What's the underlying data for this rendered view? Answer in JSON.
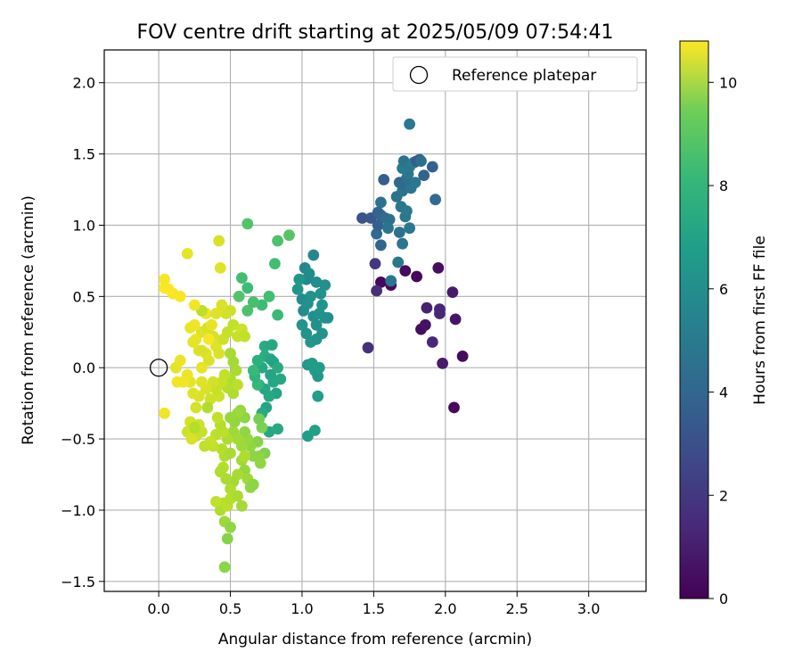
{
  "chart_data": {
    "type": "scatter",
    "title": "FOV centre drift starting at 2025/05/09 07:54:41",
    "xlabel": "Angular distance from reference (arcmin)",
    "ylabel": "Rotation from reference (arcmin)",
    "xlim": [
      -0.38,
      3.4
    ],
    "ylim": [
      -1.57,
      2.23
    ],
    "xticks": [
      0.0,
      0.5,
      1.0,
      1.5,
      2.0,
      2.5,
      3.0
    ],
    "xtick_labels": [
      "0.0",
      "0.5",
      "1.0",
      "1.5",
      "2.0",
      "2.5",
      "3.0"
    ],
    "yticks": [
      -1.5,
      -1.0,
      -0.5,
      0.0,
      0.5,
      1.0,
      1.5,
      2.0
    ],
    "ytick_labels": [
      "−1.5",
      "−1.0",
      "−0.5",
      "0.0",
      "0.5",
      "1.0",
      "1.5",
      "2.0"
    ],
    "grid": true,
    "legend": {
      "position": "top-right",
      "entries": [
        "Reference platepar"
      ]
    },
    "reference_point": {
      "x": 0.0,
      "y": 0.0,
      "marker": "open-circle"
    },
    "colorbar": {
      "label": "Hours from first FF file",
      "colormap": "viridis",
      "min": 0,
      "max": 10.8,
      "ticks": [
        0,
        2,
        4,
        6,
        8,
        10
      ],
      "tick_labels": [
        "0",
        "2",
        "4",
        "6",
        "8",
        "10"
      ]
    },
    "points": [
      {
        "x": 1.55,
        "y": 0.6,
        "c": 0.2
      },
      {
        "x": 1.62,
        "y": 0.58,
        "c": 0.3
      },
      {
        "x": 1.72,
        "y": 0.68,
        "c": 0.3
      },
      {
        "x": 1.8,
        "y": 0.64,
        "c": 0.2
      },
      {
        "x": 1.83,
        "y": 0.27,
        "c": 0.4
      },
      {
        "x": 1.86,
        "y": 0.3,
        "c": 0.5
      },
      {
        "x": 1.95,
        "y": 0.7,
        "c": 0.4
      },
      {
        "x": 2.12,
        "y": 0.08,
        "c": 0.3
      },
      {
        "x": 2.06,
        "y": -0.28,
        "c": 0.2
      },
      {
        "x": 2.07,
        "y": 0.34,
        "c": 0.6
      },
      {
        "x": 2.05,
        "y": 0.53,
        "c": 0.8
      },
      {
        "x": 1.98,
        "y": 0.03,
        "c": 0.8
      },
      {
        "x": 1.96,
        "y": 0.41,
        "c": 1.1
      },
      {
        "x": 1.96,
        "y": 0.38,
        "c": 1.2
      },
      {
        "x": 1.87,
        "y": 0.42,
        "c": 1.0
      },
      {
        "x": 1.91,
        "y": 0.18,
        "c": 1.2
      },
      {
        "x": 1.46,
        "y": 0.14,
        "c": 1.5
      },
      {
        "x": 1.52,
        "y": 0.54,
        "c": 1.5
      },
      {
        "x": 1.51,
        "y": 0.73,
        "c": 1.7
      },
      {
        "x": 1.55,
        "y": 0.86,
        "c": 3.5
      },
      {
        "x": 1.52,
        "y": 0.94,
        "c": 3.7
      },
      {
        "x": 1.53,
        "y": 1.0,
        "c": 3.3
      },
      {
        "x": 1.55,
        "y": 1.07,
        "c": 3.6
      },
      {
        "x": 1.42,
        "y": 1.05,
        "c": 2.8
      },
      {
        "x": 1.48,
        "y": 1.05,
        "c": 3.0
      },
      {
        "x": 1.53,
        "y": 1.09,
        "c": 3.5
      },
      {
        "x": 1.58,
        "y": 1.05,
        "c": 3.8
      },
      {
        "x": 1.61,
        "y": 1.04,
        "c": 3.9
      },
      {
        "x": 1.6,
        "y": 0.98,
        "c": 4.1
      },
      {
        "x": 1.55,
        "y": 1.16,
        "c": 4.0
      },
      {
        "x": 1.57,
        "y": 1.32,
        "c": 3.2
      },
      {
        "x": 1.62,
        "y": 0.61,
        "c": 4.2
      },
      {
        "x": 1.67,
        "y": 0.74,
        "c": 4.3
      },
      {
        "x": 1.68,
        "y": 0.95,
        "c": 4.0
      },
      {
        "x": 1.7,
        "y": 0.87,
        "c": 4.2
      },
      {
        "x": 1.72,
        "y": 1.06,
        "c": 4.3
      },
      {
        "x": 1.69,
        "y": 1.13,
        "c": 4.2
      },
      {
        "x": 1.73,
        "y": 1.1,
        "c": 4.4
      },
      {
        "x": 1.75,
        "y": 0.98,
        "c": 4.3
      },
      {
        "x": 1.66,
        "y": 1.2,
        "c": 4.0
      },
      {
        "x": 1.7,
        "y": 1.24,
        "c": 4.1
      },
      {
        "x": 1.72,
        "y": 1.28,
        "c": 3.8
      },
      {
        "x": 1.68,
        "y": 1.3,
        "c": 3.6
      },
      {
        "x": 1.73,
        "y": 1.33,
        "c": 3.9
      },
      {
        "x": 1.74,
        "y": 1.36,
        "c": 4.2
      },
      {
        "x": 1.7,
        "y": 1.4,
        "c": 4.4
      },
      {
        "x": 1.71,
        "y": 1.45,
        "c": 4.0
      },
      {
        "x": 1.75,
        "y": 1.41,
        "c": 4.3
      },
      {
        "x": 1.78,
        "y": 1.44,
        "c": 4.5
      },
      {
        "x": 1.76,
        "y": 1.26,
        "c": 4.2
      },
      {
        "x": 1.79,
        "y": 1.3,
        "c": 4.3
      },
      {
        "x": 1.8,
        "y": 1.45,
        "c": 3.1
      },
      {
        "x": 1.82,
        "y": 1.46,
        "c": 3.3
      },
      {
        "x": 1.85,
        "y": 1.35,
        "c": 3.4
      },
      {
        "x": 1.91,
        "y": 1.41,
        "c": 3.3
      },
      {
        "x": 1.93,
        "y": 1.18,
        "c": 3.7
      },
      {
        "x": 1.75,
        "y": 1.71,
        "c": 4.4
      },
      {
        "x": 1.83,
        "y": 1.45,
        "c": 3.9
      },
      {
        "x": 1.02,
        "y": 0.7,
        "c": 5.0
      },
      {
        "x": 1.03,
        "y": 0.62,
        "c": 5.1
      },
      {
        "x": 1.05,
        "y": 0.66,
        "c": 5.2
      },
      {
        "x": 1.08,
        "y": 0.79,
        "c": 5.0
      },
      {
        "x": 1.1,
        "y": 0.6,
        "c": 5.3
      },
      {
        "x": 1.13,
        "y": 0.52,
        "c": 5.5
      },
      {
        "x": 1.16,
        "y": 0.58,
        "c": 5.4
      },
      {
        "x": 1.0,
        "y": 0.48,
        "c": 5.2
      },
      {
        "x": 1.01,
        "y": 0.4,
        "c": 5.3
      },
      {
        "x": 1.04,
        "y": 0.45,
        "c": 5.4
      },
      {
        "x": 1.06,
        "y": 0.5,
        "c": 5.5
      },
      {
        "x": 1.08,
        "y": 0.36,
        "c": 5.3
      },
      {
        "x": 1.1,
        "y": 0.3,
        "c": 5.4
      },
      {
        "x": 1.12,
        "y": 0.38,
        "c": 5.5
      },
      {
        "x": 1.14,
        "y": 0.44,
        "c": 5.6
      },
      {
        "x": 1.16,
        "y": 0.35,
        "c": 5.5
      },
      {
        "x": 1.18,
        "y": 0.35,
        "c": 5.4
      },
      {
        "x": 1.0,
        "y": 0.3,
        "c": 5.6
      },
      {
        "x": 1.03,
        "y": 0.24,
        "c": 5.5
      },
      {
        "x": 1.06,
        "y": 0.18,
        "c": 5.7
      },
      {
        "x": 1.1,
        "y": 0.2,
        "c": 5.6
      },
      {
        "x": 1.14,
        "y": 0.24,
        "c": 5.5
      },
      {
        "x": 1.04,
        "y": 0.02,
        "c": 5.8
      },
      {
        "x": 1.07,
        "y": 0.03,
        "c": 5.9
      },
      {
        "x": 1.09,
        "y": -0.02,
        "c": 5.9
      },
      {
        "x": 1.11,
        "y": -0.06,
        "c": 5.8
      },
      {
        "x": 1.12,
        "y": 0.0,
        "c": 5.9
      },
      {
        "x": 1.11,
        "y": -0.2,
        "c": 6.0
      },
      {
        "x": 1.04,
        "y": -0.48,
        "c": 6.0
      },
      {
        "x": 1.09,
        "y": -0.44,
        "c": 6.1
      },
      {
        "x": 0.97,
        "y": 0.55,
        "c": 5.6
      },
      {
        "x": 0.98,
        "y": 0.62,
        "c": 5.7
      },
      {
        "x": 0.78,
        "y": -0.05,
        "c": 6.3
      },
      {
        "x": 0.8,
        "y": -0.1,
        "c": 6.4
      },
      {
        "x": 0.82,
        "y": -0.18,
        "c": 6.2
      },
      {
        "x": 0.77,
        "y": -0.2,
        "c": 6.5
      },
      {
        "x": 0.75,
        "y": -0.28,
        "c": 6.3
      },
      {
        "x": 0.72,
        "y": -0.32,
        "c": 6.6
      },
      {
        "x": 0.74,
        "y": -0.15,
        "c": 6.4
      },
      {
        "x": 0.7,
        "y": -0.12,
        "c": 6.6
      },
      {
        "x": 0.72,
        "y": 0.0,
        "c": 6.5
      },
      {
        "x": 0.74,
        "y": 0.08,
        "c": 6.7
      },
      {
        "x": 0.69,
        "y": 0.05,
        "c": 6.8
      },
      {
        "x": 0.78,
        "y": 0.06,
        "c": 6.4
      },
      {
        "x": 0.8,
        "y": 0.04,
        "c": 6.3
      },
      {
        "x": 0.83,
        "y": 0.0,
        "c": 6.6
      },
      {
        "x": 0.85,
        "y": -0.08,
        "c": 6.5
      },
      {
        "x": 0.77,
        "y": -0.45,
        "c": 6.4
      },
      {
        "x": 0.83,
        "y": -0.43,
        "c": 6.5
      },
      {
        "x": 0.74,
        "y": 0.15,
        "c": 6.6
      },
      {
        "x": 0.79,
        "y": 0.16,
        "c": 6.5
      },
      {
        "x": 0.83,
        "y": 0.37,
        "c": 7.3
      },
      {
        "x": 0.77,
        "y": 0.5,
        "c": 7.5
      },
      {
        "x": 0.72,
        "y": 0.44,
        "c": 7.4
      },
      {
        "x": 0.66,
        "y": 0.46,
        "c": 7.6
      },
      {
        "x": 0.62,
        "y": 0.4,
        "c": 7.7
      },
      {
        "x": 0.58,
        "y": 0.63,
        "c": 7.5
      },
      {
        "x": 0.62,
        "y": 0.56,
        "c": 7.4
      },
      {
        "x": 0.56,
        "y": 0.5,
        "c": 7.8
      },
      {
        "x": 0.81,
        "y": 0.73,
        "c": 7.5
      },
      {
        "x": 0.83,
        "y": 0.89,
        "c": 7.7
      },
      {
        "x": 0.91,
        "y": 0.93,
        "c": 7.9
      },
      {
        "x": 0.62,
        "y": 1.01,
        "c": 7.8
      },
      {
        "x": 0.69,
        "y": -0.12,
        "c": 7.2
      },
      {
        "x": 0.67,
        "y": -0.06,
        "c": 7.0
      },
      {
        "x": 0.66,
        "y": -0.02,
        "c": 7.3
      },
      {
        "x": 0.7,
        "y": -0.36,
        "c": 8.5
      },
      {
        "x": 0.72,
        "y": -0.42,
        "c": 8.6
      },
      {
        "x": 0.69,
        "y": -0.52,
        "c": 8.8
      },
      {
        "x": 0.74,
        "y": -0.6,
        "c": 8.7
      },
      {
        "x": 0.7,
        "y": -0.62,
        "c": 8.9
      },
      {
        "x": 0.71,
        "y": -0.67,
        "c": 9.0
      },
      {
        "x": 0.66,
        "y": -0.62,
        "c": 8.9
      },
      {
        "x": 0.64,
        "y": -0.55,
        "c": 9.0
      },
      {
        "x": 0.62,
        "y": -0.5,
        "c": 9.1
      },
      {
        "x": 0.6,
        "y": -0.45,
        "c": 9.0
      },
      {
        "x": 0.6,
        "y": -0.35,
        "c": 8.9
      },
      {
        "x": 0.57,
        "y": -0.3,
        "c": 9.1
      },
      {
        "x": 0.55,
        "y": -0.32,
        "c": 9.2
      },
      {
        "x": 0.53,
        "y": -0.38,
        "c": 9.0
      },
      {
        "x": 0.5,
        "y": -0.35,
        "c": 9.1
      },
      {
        "x": 0.52,
        "y": -0.45,
        "c": 9.2
      },
      {
        "x": 0.55,
        "y": -0.5,
        "c": 9.3
      },
      {
        "x": 0.58,
        "y": -0.55,
        "c": 9.2
      },
      {
        "x": 0.58,
        "y": -0.65,
        "c": 9.3
      },
      {
        "x": 0.6,
        "y": -0.72,
        "c": 9.1
      },
      {
        "x": 0.62,
        "y": -0.78,
        "c": 9.2
      },
      {
        "x": 0.64,
        "y": -0.84,
        "c": 9.0
      },
      {
        "x": 0.66,
        "y": -0.82,
        "c": 8.9
      },
      {
        "x": 0.55,
        "y": -0.75,
        "c": 9.4
      },
      {
        "x": 0.52,
        "y": -0.8,
        "c": 9.3
      },
      {
        "x": 0.5,
        "y": -0.85,
        "c": 9.5
      },
      {
        "x": 0.47,
        "y": -0.78,
        "c": 9.4
      },
      {
        "x": 0.45,
        "y": -0.7,
        "c": 9.6
      },
      {
        "x": 0.43,
        "y": -0.73,
        "c": 9.5
      },
      {
        "x": 0.46,
        "y": -0.62,
        "c": 9.5
      },
      {
        "x": 0.44,
        "y": -0.57,
        "c": 9.6
      },
      {
        "x": 0.5,
        "y": -0.6,
        "c": 9.4
      },
      {
        "x": 0.48,
        "y": -0.5,
        "c": 9.5
      },
      {
        "x": 0.45,
        "y": -0.45,
        "c": 9.7
      },
      {
        "x": 0.43,
        "y": -0.4,
        "c": 9.6
      },
      {
        "x": 0.41,
        "y": -0.35,
        "c": 9.8
      },
      {
        "x": 0.4,
        "y": -0.47,
        "c": 9.7
      },
      {
        "x": 0.38,
        "y": -0.55,
        "c": 9.8
      },
      {
        "x": 0.36,
        "y": -0.52,
        "c": 9.9
      },
      {
        "x": 0.32,
        "y": -0.55,
        "c": 9.8
      },
      {
        "x": 0.3,
        "y": -0.45,
        "c": 9.9
      },
      {
        "x": 0.28,
        "y": -0.4,
        "c": 10.0
      },
      {
        "x": 0.26,
        "y": -0.48,
        "c": 9.9
      },
      {
        "x": 0.22,
        "y": -0.38,
        "c": 10.1
      },
      {
        "x": 0.2,
        "y": -0.45,
        "c": 10.0
      },
      {
        "x": 0.23,
        "y": -0.5,
        "c": 10.2
      },
      {
        "x": 0.45,
        "y": -0.95,
        "c": 9.6
      },
      {
        "x": 0.43,
        "y": -1.0,
        "c": 9.5
      },
      {
        "x": 0.48,
        "y": -0.97,
        "c": 9.7
      },
      {
        "x": 0.5,
        "y": -0.92,
        "c": 9.6
      },
      {
        "x": 0.55,
        "y": -0.9,
        "c": 9.4
      },
      {
        "x": 0.58,
        "y": -0.97,
        "c": 9.3
      },
      {
        "x": 0.46,
        "y": -1.08,
        "c": 9.2
      },
      {
        "x": 0.5,
        "y": -1.12,
        "c": 9.0
      },
      {
        "x": 0.48,
        "y": -1.2,
        "c": 8.8
      },
      {
        "x": 0.46,
        "y": -1.4,
        "c": 8.9
      },
      {
        "x": 0.4,
        "y": -0.94,
        "c": 9.8
      },
      {
        "x": 0.6,
        "y": -0.62,
        "c": 9.5
      },
      {
        "x": 0.5,
        "y": 0.1,
        "c": 9.4
      },
      {
        "x": 0.52,
        "y": 0.04,
        "c": 9.3
      },
      {
        "x": 0.54,
        "y": -0.02,
        "c": 9.4
      },
      {
        "x": 0.5,
        "y": -0.08,
        "c": 9.5
      },
      {
        "x": 0.48,
        "y": -0.14,
        "c": 9.6
      },
      {
        "x": 0.52,
        "y": -0.18,
        "c": 9.5
      },
      {
        "x": 0.55,
        "y": -0.12,
        "c": 9.7
      },
      {
        "x": 0.46,
        "y": -0.05,
        "c": 9.8
      },
      {
        "x": 0.44,
        "y": -0.1,
        "c": 9.9
      },
      {
        "x": 0.42,
        "y": -0.2,
        "c": 10.0
      },
      {
        "x": 0.4,
        "y": -0.15,
        "c": 9.9
      },
      {
        "x": 0.38,
        "y": -0.1,
        "c": 10.1
      },
      {
        "x": 0.36,
        "y": -0.22,
        "c": 10.0
      },
      {
        "x": 0.33,
        "y": -0.15,
        "c": 10.2
      },
      {
        "x": 0.3,
        "y": -0.1,
        "c": 10.3
      },
      {
        "x": 0.28,
        "y": -0.2,
        "c": 10.2
      },
      {
        "x": 0.26,
        "y": -0.28,
        "c": 10.1
      },
      {
        "x": 0.24,
        "y": -0.18,
        "c": 10.3
      },
      {
        "x": 0.22,
        "y": -0.1,
        "c": 10.4
      },
      {
        "x": 0.2,
        "y": -0.05,
        "c": 10.5
      },
      {
        "x": 0.17,
        "y": -0.1,
        "c": 10.6
      },
      {
        "x": 0.15,
        "y": 0.05,
        "c": 10.5
      },
      {
        "x": 0.13,
        "y": -0.1,
        "c": 10.6
      },
      {
        "x": 0.12,
        "y": 0.0,
        "c": 10.4
      },
      {
        "x": 0.35,
        "y": 0.05,
        "c": 10.2
      },
      {
        "x": 0.33,
        "y": 0.1,
        "c": 10.3
      },
      {
        "x": 0.3,
        "y": 0.0,
        "c": 10.4
      },
      {
        "x": 0.28,
        "y": 0.12,
        "c": 10.3
      },
      {
        "x": 0.26,
        "y": 0.2,
        "c": 10.5
      },
      {
        "x": 0.24,
        "y": 0.18,
        "c": 10.4
      },
      {
        "x": 0.3,
        "y": 0.25,
        "c": 10.3
      },
      {
        "x": 0.34,
        "y": 0.28,
        "c": 10.2
      },
      {
        "x": 0.38,
        "y": 0.22,
        "c": 10.1
      },
      {
        "x": 0.4,
        "y": 0.15,
        "c": 10.3
      },
      {
        "x": 0.42,
        "y": 0.1,
        "c": 10.2
      },
      {
        "x": 0.45,
        "y": 0.2,
        "c": 10.0
      },
      {
        "x": 0.48,
        "y": 0.25,
        "c": 9.9
      },
      {
        "x": 0.52,
        "y": 0.3,
        "c": 9.8
      },
      {
        "x": 0.55,
        "y": 0.22,
        "c": 9.9
      },
      {
        "x": 0.58,
        "y": 0.27,
        "c": 10.0
      },
      {
        "x": 0.6,
        "y": 0.22,
        "c": 9.8
      },
      {
        "x": 0.5,
        "y": 0.4,
        "c": 10.0
      },
      {
        "x": 0.47,
        "y": 0.38,
        "c": 10.1
      },
      {
        "x": 0.44,
        "y": 0.44,
        "c": 10.2
      },
      {
        "x": 0.4,
        "y": 0.38,
        "c": 10.3
      },
      {
        "x": 0.37,
        "y": 0.3,
        "c": 10.4
      },
      {
        "x": 0.33,
        "y": 0.38,
        "c": 10.5
      },
      {
        "x": 0.3,
        "y": 0.4,
        "c": 9.7
      },
      {
        "x": 0.25,
        "y": 0.3,
        "c": 10.6
      },
      {
        "x": 0.22,
        "y": 0.28,
        "c": 10.5
      },
      {
        "x": 0.25,
        "y": 0.44,
        "c": 10.6
      },
      {
        "x": 0.15,
        "y": 0.5,
        "c": 10.7
      },
      {
        "x": 0.1,
        "y": 0.52,
        "c": 10.7
      },
      {
        "x": 0.07,
        "y": 0.55,
        "c": 10.8
      },
      {
        "x": 0.04,
        "y": 0.56,
        "c": 10.8
      },
      {
        "x": 0.04,
        "y": 0.62,
        "c": 10.7
      },
      {
        "x": 0.2,
        "y": 0.8,
        "c": 10.4
      },
      {
        "x": 0.42,
        "y": 0.89,
        "c": 10.2
      },
      {
        "x": 0.43,
        "y": 0.7,
        "c": 10.3
      },
      {
        "x": 0.04,
        "y": -0.32,
        "c": 10.6
      },
      {
        "x": 0.3,
        "y": 0.12,
        "c": 10.2
      },
      {
        "x": 0.35,
        "y": 0.2,
        "c": 10.7
      },
      {
        "x": 0.34,
        "y": -0.28,
        "c": 9.5
      },
      {
        "x": 0.25,
        "y": -0.42,
        "c": 9.6
      }
    ]
  }
}
